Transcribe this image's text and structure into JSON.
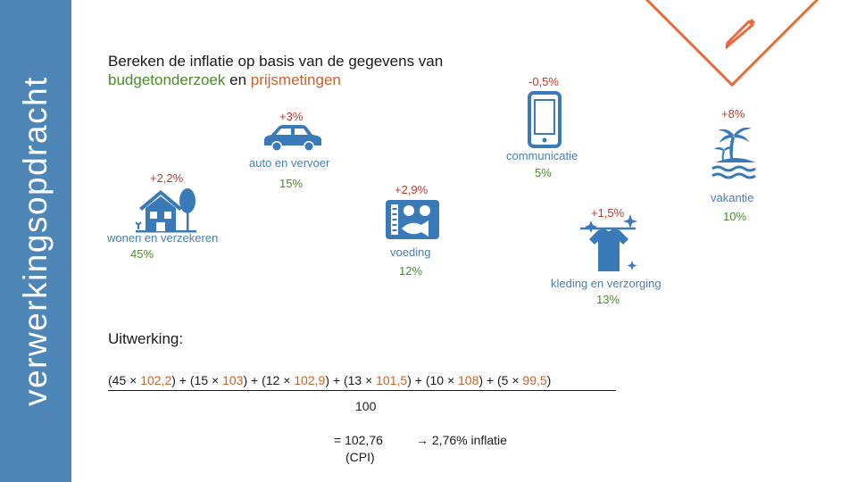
{
  "sidebar": {
    "title": "verwerkingsopdracht"
  },
  "title": {
    "line1": "Bereken de inflatie op basis van de gegevens van",
    "part1": "budgetonderzoek",
    "and": " en ",
    "part2": "prijsmetingen"
  },
  "categories": {
    "communicatie": {
      "change": "-0,5%",
      "label": "communicatie",
      "weight": "5%"
    },
    "auto": {
      "change": "+3%",
      "label": "auto en vervoer",
      "weight": "15%"
    },
    "vakantie": {
      "change": "+8%",
      "label": "vakantie",
      "weight": "10%"
    },
    "wonen": {
      "change": "+2,2%",
      "label": "wonen en verzekeren",
      "weight": "45%"
    },
    "voeding": {
      "change": "+2,9%",
      "label": "voeding",
      "weight": "12%"
    },
    "kleding": {
      "change": "+1,5%",
      "label": "kleding en verzorging",
      "weight": "13%"
    }
  },
  "uitwerking": {
    "heading": "Uitwerking:",
    "numerator": {
      "t1a": "(45 × ",
      "t1b": "102,2",
      "t1c": ")",
      "t2a": " + (15 × ",
      "t2b": "103",
      "t2c": ")",
      "t3a": " + (12 × ",
      "t3b": "102,9",
      "t3c": ")",
      "t4a": " + (13 × ",
      "t4b": "101,5",
      "t4c": ")",
      "t5a": " + (10 × ",
      "t5b": "108",
      "t5c": ")",
      "t6a": " + (5 × ",
      "t6b": "99,5",
      "t6c": ")"
    },
    "denominator": "100",
    "result": "= 102,76",
    "result_label": "(CPI)",
    "arrow_result": "→ 2,76% inflatie"
  },
  "colors": {
    "sidebar": "#4f86b8",
    "icon": "#3a7ab8",
    "green": "#4d8a2a",
    "orange": "#c8622c",
    "accent": "#e8693a"
  }
}
